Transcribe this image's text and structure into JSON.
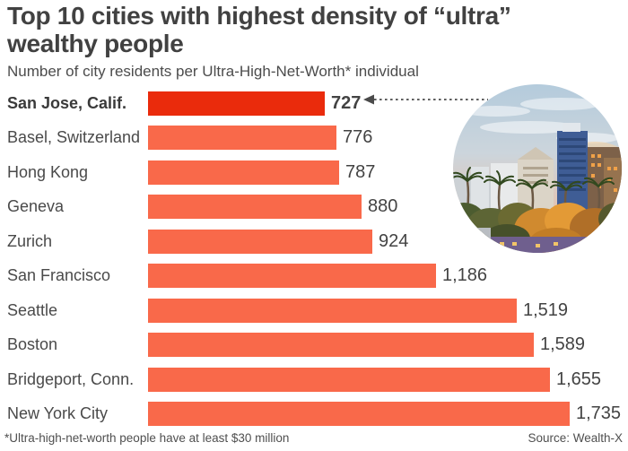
{
  "header": {
    "title": "Top 10 cities with highest density of “ultra” wealthy people",
    "subtitle": "Number of city residents per Ultra-High-Net-Worth* individual"
  },
  "footer": {
    "footnote": "*Ultra-high-net-worth people have at least $30 million",
    "source": "Source: Wealth-X"
  },
  "colors": {
    "bar": "#f9694a",
    "highlight_bar": "#ea2b0c",
    "text": "#4a4a4a"
  },
  "photo": {
    "alt_name": "san-jose-skyline-photo"
  },
  "chart_data": {
    "type": "bar",
    "orientation": "horizontal",
    "title": "Top 10 cities with highest density of “ultra” wealthy people",
    "subtitle": "Number of city residents per Ultra-High-Net-Worth* individual",
    "categories": [
      "San Jose, Calif.",
      "Basel, Switzerland",
      "Hong Kong",
      "Geneva",
      "Zurich",
      "San Francisco",
      "Seattle",
      "Boston",
      "Bridgeport, Conn.",
      "New York City"
    ],
    "values": [
      727,
      776,
      787,
      880,
      924,
      1186,
      1519,
      1589,
      1655,
      1735
    ],
    "value_labels": [
      "727",
      "776",
      "787",
      "880",
      "924",
      "1,186",
      "1,519",
      "1,589",
      "1,655",
      "1,735"
    ],
    "highlight_index": 0,
    "highlighted_category": "San Jose, Calif.",
    "xlim": [
      0,
      1800
    ],
    "grid": false,
    "legend": false,
    "annotation": {
      "type": "dotted-arrow-to-photo",
      "target": "San Jose, Calif."
    },
    "footnote": "*Ultra-high-net-worth people have at least $30 million",
    "source": "Source: Wealth-X"
  }
}
